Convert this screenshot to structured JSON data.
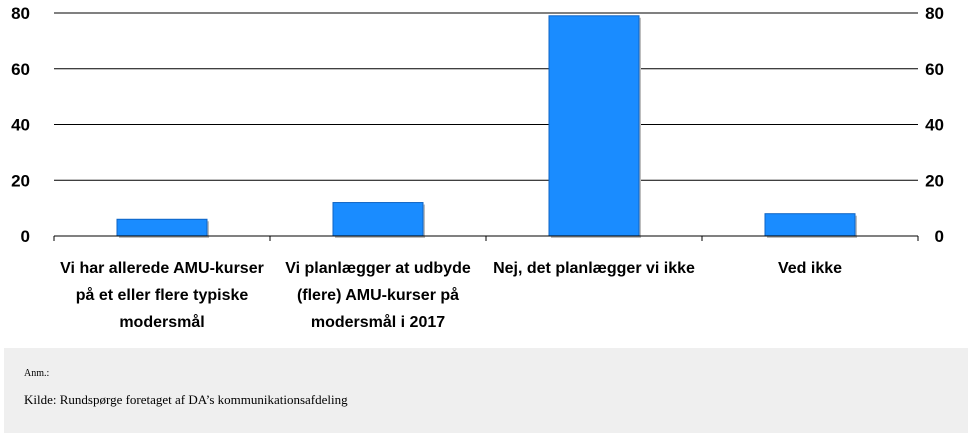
{
  "chart_data": {
    "type": "bar",
    "categories": [
      [
        "Vi har allerede AMU-kurser",
        "på et eller flere typiske",
        "modersmål"
      ],
      [
        "Vi planlægger at udbyde",
        "(flere) AMU-kurser på",
        "modersmål i 2017"
      ],
      [
        "Nej, det planlægger vi ikke"
      ],
      [
        "Ved ikke"
      ]
    ],
    "values": [
      6,
      12,
      79,
      8
    ],
    "ylim": [
      0,
      80
    ],
    "yticks": [
      0,
      20,
      40,
      60,
      80
    ],
    "grid": true,
    "secondary_y_axis": true,
    "bar_color": "#1a8cff",
    "bar_edge_color": "#0d63c4"
  },
  "footer": {
    "note": "Anm.:",
    "source": "Kilde: Rundspørge foretaget af DA’s kommunikationsafdeling"
  }
}
